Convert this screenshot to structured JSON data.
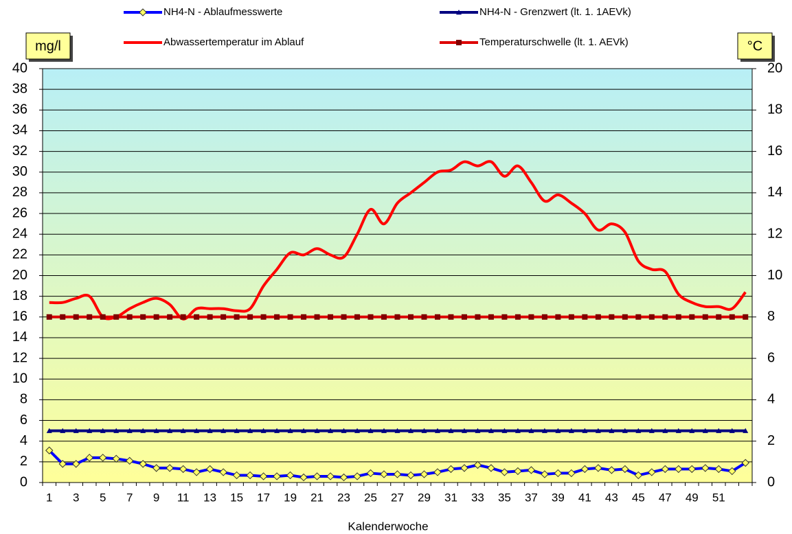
{
  "chart_data": {
    "type": "line",
    "y_label": "mg/l",
    "y2_label": "°C",
    "x_label": "Kalenderwoche",
    "categories": [
      1,
      null,
      3,
      null,
      5,
      null,
      7,
      null,
      9,
      null,
      11,
      null,
      13,
      null,
      15,
      null,
      17,
      null,
      19,
      null,
      21,
      null,
      23,
      null,
      25,
      null,
      27,
      null,
      29,
      null,
      31,
      null,
      33,
      null,
      35,
      null,
      37,
      null,
      39,
      null,
      41,
      null,
      43,
      null,
      45,
      null,
      47,
      null,
      49,
      null,
      51,
      null,
      null
    ],
    "ylim": [
      0,
      40
    ],
    "yticks": [
      0,
      2,
      4,
      6,
      8,
      10,
      12,
      14,
      16,
      18,
      20,
      22,
      24,
      26,
      28,
      30,
      32,
      34,
      36,
      38,
      40
    ],
    "y2lim": [
      0,
      20
    ],
    "y2ticks": [
      0,
      2,
      4,
      6,
      8,
      10,
      12,
      14,
      16,
      18,
      20
    ],
    "grid": true,
    "series": [
      {
        "name": "NH4-N - Ablaufmesswerte",
        "color": "#0000ff",
        "marker": "diamond",
        "marker_color": "#ffff66",
        "values": [
          3.1,
          1.8,
          1.8,
          2.4,
          2.4,
          2.3,
          2.1,
          1.8,
          1.4,
          1.4,
          1.3,
          1.0,
          1.3,
          1.0,
          0.7,
          0.7,
          0.6,
          0.6,
          0.7,
          0.5,
          0.6,
          0.6,
          0.5,
          0.6,
          0.9,
          0.8,
          0.8,
          0.7,
          0.8,
          1.0,
          1.3,
          1.4,
          1.7,
          1.4,
          1.0,
          1.1,
          1.2,
          0.8,
          0.9,
          0.9,
          1.3,
          1.4,
          1.2,
          1.3,
          0.7,
          1.0,
          1.3,
          1.3,
          1.3,
          1.4,
          1.3,
          1.1,
          1.9
        ]
      },
      {
        "name": "NH4-N - Grenzwert (lt. 1. 1AEVk)",
        "color": "#000080",
        "marker": "triangle",
        "marker_color": "#000080",
        "values": [
          5,
          5,
          5,
          5,
          5,
          5,
          5,
          5,
          5,
          5,
          5,
          5,
          5,
          5,
          5,
          5,
          5,
          5,
          5,
          5,
          5,
          5,
          5,
          5,
          5,
          5,
          5,
          5,
          5,
          5,
          5,
          5,
          5,
          5,
          5,
          5,
          5,
          5,
          5,
          5,
          5,
          5,
          5,
          5,
          5,
          5,
          5,
          5,
          5,
          5,
          5,
          5,
          5
        ]
      },
      {
        "name": "Abwassertemperatur im Ablauf",
        "color": "#ff0000",
        "axis": "y2",
        "smooth": true,
        "values": [
          8.7,
          8.7,
          8.9,
          9.0,
          8.0,
          8.0,
          8.4,
          8.7,
          8.9,
          8.6,
          7.9,
          8.4,
          8.4,
          8.4,
          8.3,
          8.4,
          9.5,
          10.3,
          11.1,
          11.0,
          11.3,
          11.0,
          10.9,
          12.0,
          13.2,
          12.5,
          13.5,
          14.0,
          14.5,
          15.0,
          15.1,
          15.5,
          15.3,
          15.5,
          14.8,
          15.3,
          14.5,
          13.6,
          13.9,
          13.5,
          13.0,
          12.2,
          12.5,
          12.1,
          10.7,
          10.3,
          10.2,
          9.1,
          8.7,
          8.5,
          8.5,
          8.4,
          9.2
        ]
      },
      {
        "name": "Temperaturschwelle (lt. 1. AEVk)",
        "color": "#dd0000",
        "axis": "y2",
        "marker": "square",
        "marker_color": "#800000",
        "values": [
          8,
          8,
          8,
          8,
          8,
          8,
          8,
          8,
          8,
          8,
          8,
          8,
          8,
          8,
          8,
          8,
          8,
          8,
          8,
          8,
          8,
          8,
          8,
          8,
          8,
          8,
          8,
          8,
          8,
          8,
          8,
          8,
          8,
          8,
          8,
          8,
          8,
          8,
          8,
          8,
          8,
          8,
          8,
          8,
          8,
          8,
          8,
          8,
          8,
          8,
          8,
          8,
          8
        ]
      }
    ]
  }
}
